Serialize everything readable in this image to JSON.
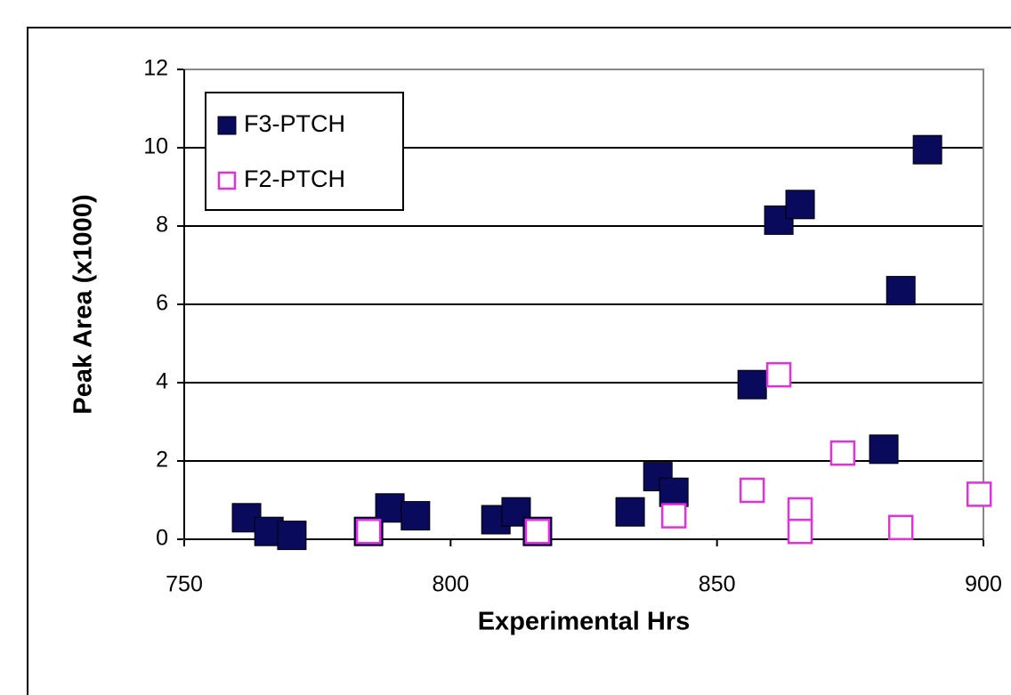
{
  "chart_data": {
    "type": "scatter",
    "x_label": "Experimental Hrs",
    "y_label": "Peak Area (x1000)",
    "xlim": [
      750,
      900
    ],
    "xticks": [
      750,
      800,
      850,
      900
    ],
    "ylim": [
      0,
      12
    ],
    "yticks": [
      0,
      2,
      4,
      6,
      8,
      10,
      12
    ],
    "grid": true,
    "legend": "upper left",
    "series": [
      {
        "name": "F3-PTCH",
        "color": "#0a0a5c",
        "marker": "filled-square",
        "x": [
          761.7,
          765.9,
          770.2,
          784.6,
          788.6,
          793.4,
          808.5,
          812.3,
          816.3,
          833.7,
          838.9,
          841.9,
          856.6,
          861.6,
          865.6,
          881.3,
          884.5,
          889.5
        ],
        "values": [
          0.55,
          0.2,
          0.1,
          0.2,
          0.8,
          0.6,
          0.5,
          0.7,
          0.2,
          0.7,
          1.6,
          1.2,
          3.95,
          8.15,
          8.55,
          2.3,
          6.35,
          9.95
        ]
      },
      {
        "name": "F2-PTCH",
        "color": "#e030e0",
        "marker": "open-square",
        "x": [
          784.6,
          816.3,
          841.9,
          856.6,
          861.6,
          865.6,
          865.6,
          873.6,
          884.5,
          899.2
        ],
        "values": [
          0.2,
          0.2,
          0.6,
          1.25,
          4.2,
          0.75,
          0.2,
          2.2,
          0.3,
          1.15
        ]
      }
    ]
  }
}
